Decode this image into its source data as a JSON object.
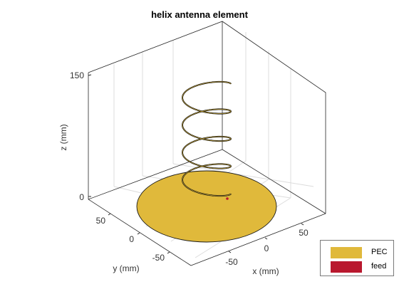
{
  "figure": {
    "title": "helix antenna element",
    "z_axis": {
      "label": "z (mm)",
      "ticks": [
        "150",
        "0"
      ]
    },
    "y_axis": {
      "label": "y (mm)",
      "ticks": [
        "50",
        "0",
        "-50"
      ]
    },
    "x_axis": {
      "label": "x (mm)",
      "ticks": [
        "50",
        "0",
        "-50"
      ]
    }
  },
  "legend": {
    "items": [
      {
        "label": "PEC",
        "color": "#e0b93b"
      },
      {
        "label": "feed",
        "color": "#b9182e"
      }
    ]
  },
  "colors": {
    "ground_plane": "#e0b93b",
    "helix_wire": "#111111",
    "feed_point": "#b9182e",
    "axes": "#262626",
    "grid": "#dcdcdc"
  }
}
